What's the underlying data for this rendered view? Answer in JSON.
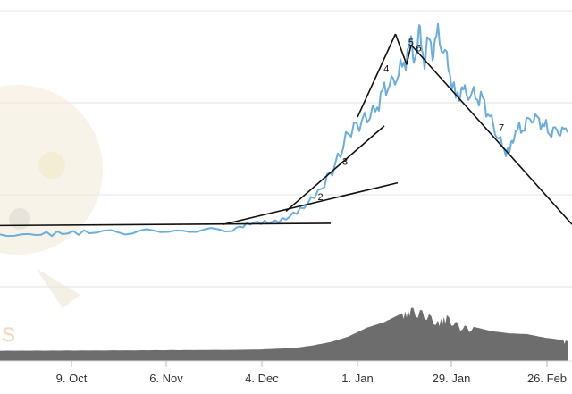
{
  "colors": {
    "price_line": "#6aaee0",
    "volume_fill": "#6d6d6d",
    "trend_line": "#111111",
    "grid": "#e2e2e2",
    "watermark": "#e8c9a0"
  },
  "chart_data": {
    "type": "line",
    "title": "",
    "xlabel": "",
    "ylabel": "",
    "x_tick_labels": [
      "9. Oct",
      "6. Nov",
      "4. Dec",
      "1. Jan",
      "29. Jan",
      "26. Feb"
    ],
    "grid": "horizontal",
    "series": [
      {
        "kind": "price",
        "points": [
          [
            0,
            8
          ],
          [
            8,
            8.5
          ],
          [
            14,
            9
          ],
          [
            20,
            9.5
          ],
          [
            28,
            9.5
          ],
          [
            36,
            10
          ],
          [
            44,
            10
          ],
          [
            52,
            11
          ],
          [
            56,
            13
          ],
          [
            60,
            14
          ],
          [
            64,
            16
          ],
          [
            68,
            20
          ],
          [
            72,
            30
          ],
          [
            75,
            40
          ],
          [
            78,
            55
          ],
          [
            81,
            60
          ],
          [
            84,
            65
          ],
          [
            86,
            75
          ],
          [
            88,
            78
          ],
          [
            90,
            85
          ],
          [
            92,
            95
          ],
          [
            93,
            90
          ],
          [
            94,
            100
          ],
          [
            95,
            88
          ],
          [
            96,
            97
          ],
          [
            97,
            93
          ],
          [
            98,
            100
          ],
          [
            100,
            88
          ],
          [
            101,
            80
          ],
          [
            102,
            70
          ],
          [
            103,
            75
          ],
          [
            104,
            73
          ],
          [
            106,
            72
          ],
          [
            108,
            70
          ],
          [
            110,
            60
          ],
          [
            112,
            50
          ],
          [
            114,
            45
          ],
          [
            115,
            55
          ],
          [
            117,
            57
          ],
          [
            119,
            62
          ],
          [
            121,
            60
          ],
          [
            123,
            55
          ],
          [
            125,
            56
          ],
          [
            127,
            55
          ]
        ]
      },
      {
        "kind": "volume",
        "points": [
          [
            0,
            1
          ],
          [
            10,
            1.2
          ],
          [
            20,
            1.5
          ],
          [
            30,
            2
          ],
          [
            40,
            2.5
          ],
          [
            50,
            3
          ],
          [
            58,
            4
          ],
          [
            62,
            6
          ],
          [
            66,
            8
          ],
          [
            70,
            14
          ],
          [
            74,
            22
          ],
          [
            78,
            35
          ],
          [
            82,
            55
          ],
          [
            86,
            68
          ],
          [
            90,
            88
          ],
          [
            92,
            100
          ],
          [
            95,
            92
          ],
          [
            98,
            70
          ],
          [
            100,
            82
          ],
          [
            103,
            60
          ],
          [
            106,
            55
          ],
          [
            110,
            45
          ],
          [
            114,
            40
          ],
          [
            118,
            38
          ],
          [
            122,
            30
          ],
          [
            126,
            25
          ],
          [
            127,
            24
          ]
        ]
      }
    ],
    "trendlines": [
      {
        "label": "",
        "from": [
          0,
          12.5
        ],
        "to": [
          74,
          13.5
        ]
      },
      {
        "label": "2",
        "from": [
          50,
          13
        ],
        "to": [
          89,
          32
        ]
      },
      {
        "label": "3",
        "from": [
          64,
          19
        ],
        "to": [
          86,
          58
        ]
      },
      {
        "label": "4",
        "from": [
          80,
          62
        ],
        "to": [
          88.5,
          100
        ]
      },
      {
        "label": "5",
        "from": [
          88.5,
          100
        ],
        "to": [
          91,
          86
        ]
      },
      {
        "label": "6",
        "from": [
          91,
          86
        ],
        "to": [
          92,
          95
        ]
      },
      {
        "label": "7",
        "from": [
          92,
          95
        ],
        "to": [
          128,
          13
        ]
      }
    ]
  }
}
